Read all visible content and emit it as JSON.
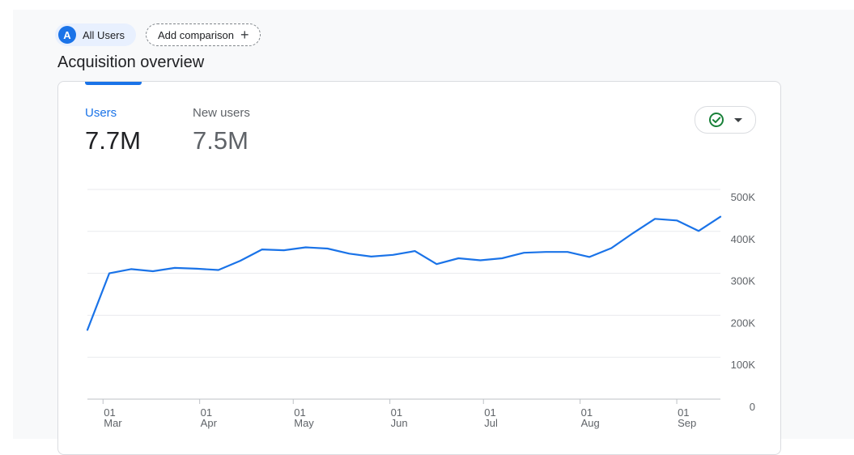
{
  "segment": {
    "badge": "A",
    "label": "All Users"
  },
  "comparison": {
    "label": "Add comparison"
  },
  "page_title": "Acquisition overview",
  "metrics": [
    {
      "label": "Users",
      "value": "7.7M"
    },
    {
      "label": "New users",
      "value": "7.5M"
    }
  ],
  "icons": {
    "status": "check-circle-icon",
    "dropdown": "caret-down-icon",
    "add": "plus-icon"
  },
  "colors": {
    "accent": "#1a73e8",
    "status_ok": "#188038"
  },
  "chart_data": {
    "type": "line",
    "title": "",
    "xlabel": "",
    "ylabel": "",
    "ylim": [
      0,
      500000
    ],
    "y_ticks": [
      {
        "value": 0,
        "label": "0"
      },
      {
        "value": 100000,
        "label": "100K"
      },
      {
        "value": 200000,
        "label": "200K"
      },
      {
        "value": 300000,
        "label": "300K"
      },
      {
        "value": 400000,
        "label": "400K"
      },
      {
        "value": 500000,
        "label": "500K"
      }
    ],
    "x_ticks": [
      {
        "date": "2024-03-01",
        "day": "01",
        "month": "Mar"
      },
      {
        "date": "2024-04-01",
        "day": "01",
        "month": "Apr"
      },
      {
        "date": "2024-05-01",
        "day": "01",
        "month": "May"
      },
      {
        "date": "2024-06-01",
        "day": "01",
        "month": "Jun"
      },
      {
        "date": "2024-07-01",
        "day": "01",
        "month": "Jul"
      },
      {
        "date": "2024-08-01",
        "day": "01",
        "month": "Aug"
      },
      {
        "date": "2024-09-01",
        "day": "01",
        "month": "Sep"
      }
    ],
    "grid": true,
    "series": [
      {
        "points": [
          {
            "x": "2024-02-25",
            "y": 165000
          },
          {
            "x": "2024-03-03",
            "y": 300000
          },
          {
            "x": "2024-03-10",
            "y": 310000
          },
          {
            "x": "2024-03-17",
            "y": 305000
          },
          {
            "x": "2024-03-24",
            "y": 313000
          },
          {
            "x": "2024-03-31",
            "y": 311000
          },
          {
            "x": "2024-04-07",
            "y": 308000
          },
          {
            "x": "2024-04-14",
            "y": 330000
          },
          {
            "x": "2024-04-21",
            "y": 357000
          },
          {
            "x": "2024-04-28",
            "y": 355000
          },
          {
            "x": "2024-05-05",
            "y": 362000
          },
          {
            "x": "2024-05-12",
            "y": 359000
          },
          {
            "x": "2024-05-19",
            "y": 347000
          },
          {
            "x": "2024-05-26",
            "y": 340000
          },
          {
            "x": "2024-06-02",
            "y": 344000
          },
          {
            "x": "2024-06-09",
            "y": 353000
          },
          {
            "x": "2024-06-16",
            "y": 322000
          },
          {
            "x": "2024-06-23",
            "y": 336000
          },
          {
            "x": "2024-06-30",
            "y": 331000
          },
          {
            "x": "2024-07-07",
            "y": 336000
          },
          {
            "x": "2024-07-14",
            "y": 349000
          },
          {
            "x": "2024-07-21",
            "y": 351000
          },
          {
            "x": "2024-07-28",
            "y": 351000
          },
          {
            "x": "2024-08-04",
            "y": 339000
          },
          {
            "x": "2024-08-11",
            "y": 360000
          },
          {
            "x": "2024-08-18",
            "y": 396000
          },
          {
            "x": "2024-08-25",
            "y": 430000
          },
          {
            "x": "2024-09-01",
            "y": 426000
          },
          {
            "x": "2024-09-08",
            "y": 401000
          },
          {
            "x": "2024-09-15",
            "y": 435000
          }
        ]
      }
    ]
  }
}
